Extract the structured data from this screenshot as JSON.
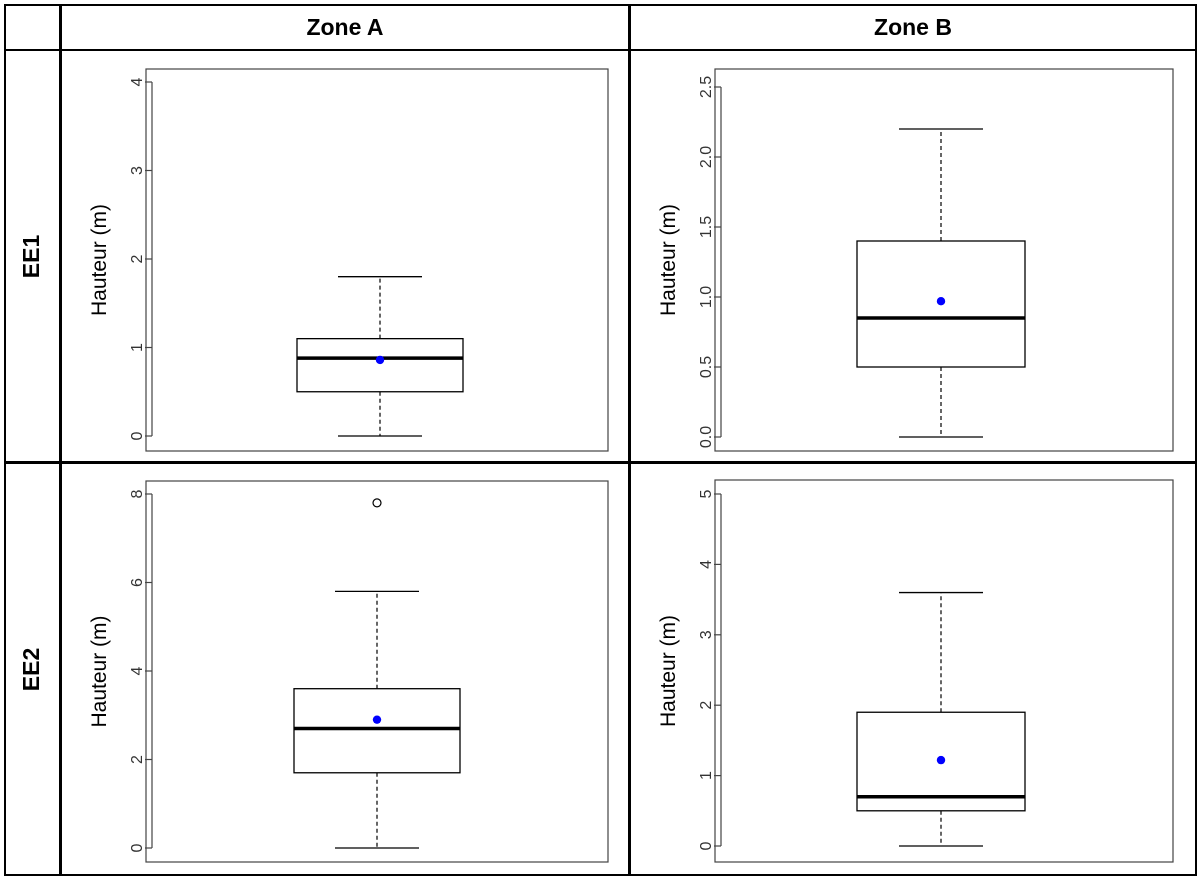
{
  "table": {
    "columns": [
      "Zone A",
      "Zone B"
    ],
    "rows": [
      "EE1",
      "EE2"
    ]
  },
  "colors": {
    "mean": "#0000ff",
    "box": "#000000"
  },
  "chart_data": [
    {
      "type": "boxplot",
      "panel": "EE1 / Zone A",
      "ylabel": "Hauteur (m)",
      "ylim": [
        0,
        4
      ],
      "yticks": [
        0,
        1,
        2,
        3,
        4
      ],
      "ytick_labels": [
        "0",
        "1",
        "2",
        "3",
        "4"
      ],
      "whisker_low": 0,
      "q1": 0.5,
      "median": 0.88,
      "q3": 1.1,
      "whisker_high": 1.8,
      "mean": 0.86,
      "outliers": []
    },
    {
      "type": "boxplot",
      "panel": "EE1 / Zone B",
      "ylabel": "Hauteur (m)",
      "ylim": [
        0,
        2.5
      ],
      "yticks": [
        0,
        0.5,
        1,
        1.5,
        2,
        2.5
      ],
      "ytick_labels": [
        "0.0",
        "0.5",
        "1.0",
        "1.5",
        "2.0",
        "2.5"
      ],
      "whisker_low": 0,
      "q1": 0.5,
      "median": 0.85,
      "q3": 1.4,
      "whisker_high": 2.2,
      "mean": 0.97,
      "outliers": []
    },
    {
      "type": "boxplot",
      "panel": "EE2 / Zone A",
      "ylabel": "Hauteur (m)",
      "ylim": [
        0,
        8
      ],
      "yticks": [
        0,
        2,
        4,
        6,
        8
      ],
      "ytick_labels": [
        "0",
        "2",
        "4",
        "6",
        "8"
      ],
      "whisker_low": 0,
      "q1": 1.7,
      "median": 2.7,
      "q3": 3.6,
      "whisker_high": 5.8,
      "mean": 2.9,
      "outliers": [
        7.8
      ]
    },
    {
      "type": "boxplot",
      "panel": "EE2 / Zone B",
      "ylabel": "Hauteur (m)",
      "ylim": [
        0,
        5
      ],
      "yticks": [
        0,
        1,
        2,
        3,
        4,
        5
      ],
      "ytick_labels": [
        "0",
        "1",
        "2",
        "3",
        "4",
        "5"
      ],
      "whisker_low": 0,
      "q1": 0.5,
      "median": 0.7,
      "q3": 1.9,
      "whisker_high": 3.6,
      "mean": 1.22,
      "outliers": []
    }
  ]
}
